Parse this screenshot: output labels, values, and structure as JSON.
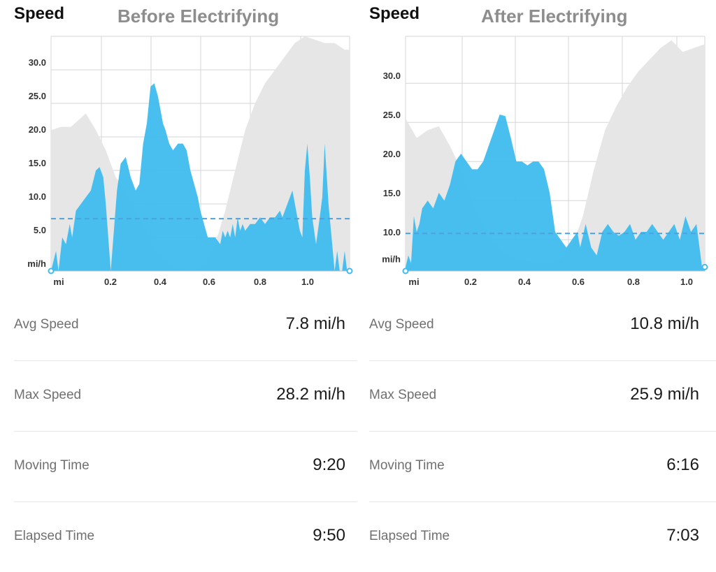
{
  "colors": {
    "speed_fill": "#3fbcef",
    "elevation_fill": "#e6e6e6",
    "avg_line": "#4aa3df",
    "grid": "#d6d6d6",
    "title_gray": "#8d8d8d"
  },
  "panels": [
    {
      "header": "Speed",
      "overlay_title": "Before Electrifying",
      "stats": [
        {
          "label": "Avg Speed",
          "value": "7.8 mi/h"
        },
        {
          "label": "Max Speed",
          "value": "28.2 mi/h"
        },
        {
          "label": "Moving Time",
          "value": "9:20"
        },
        {
          "label": "Elapsed Time",
          "value": "9:50"
        }
      ]
    },
    {
      "header": "Speed",
      "overlay_title": "After Electrifying",
      "stats": [
        {
          "label": "Avg Speed",
          "value": "10.8 mi/h"
        },
        {
          "label": "Max Speed",
          "value": "25.9 mi/h"
        },
        {
          "label": "Moving Time",
          "value": "6:16"
        },
        {
          "label": "Elapsed Time",
          "value": "7:03"
        }
      ]
    }
  ],
  "chart_data": [
    {
      "type": "area",
      "title": "Before Electrifying",
      "xlabel": "mi",
      "ylabel": "mi/h",
      "xlim": [
        0,
        1.2
      ],
      "ylim": [
        0,
        35
      ],
      "x_ticks": [
        "mi",
        "0.2",
        "0.4",
        "0.6",
        "0.8",
        "1.0"
      ],
      "y_ticks": [
        "mi/h",
        "5.0",
        "10.0",
        "15.0",
        "20.0",
        "25.0",
        "30.0"
      ],
      "grid": true,
      "avg_speed": 7.8,
      "series": [
        {
          "name": "Speed",
          "x": [
            0,
            0.02,
            0.03,
            0.045,
            0.06,
            0.075,
            0.085,
            0.1,
            0.12,
            0.14,
            0.16,
            0.18,
            0.195,
            0.21,
            0.22,
            0.24,
            0.265,
            0.28,
            0.3,
            0.32,
            0.34,
            0.355,
            0.37,
            0.385,
            0.4,
            0.415,
            0.43,
            0.45,
            0.46,
            0.475,
            0.49,
            0.51,
            0.53,
            0.545,
            0.56,
            0.575,
            0.59,
            0.6,
            0.63,
            0.66,
            0.68,
            0.69,
            0.7,
            0.71,
            0.72,
            0.73,
            0.74,
            0.75,
            0.76,
            0.77,
            0.78,
            0.8,
            0.82,
            0.84,
            0.86,
            0.88,
            0.9,
            0.92,
            0.93,
            0.95,
            0.97,
            0.99,
            1.0,
            1.01,
            1.02,
            1.03,
            1.04,
            1.05,
            1.065,
            1.08,
            1.09,
            1.1,
            1.115,
            1.13,
            1.14,
            1.15,
            1.16,
            1.17,
            1.18,
            1.19,
            1.2
          ],
          "values": [
            0,
            3,
            0,
            5,
            4,
            7,
            5,
            9,
            10,
            11,
            12,
            15,
            15.5,
            14,
            10,
            0,
            12,
            16,
            17,
            14,
            12,
            13,
            19,
            22,
            27.5,
            28,
            26,
            22,
            21,
            19,
            18,
            19,
            19,
            18,
            15,
            13,
            11,
            9,
            5,
            5,
            4,
            6,
            5,
            6,
            5,
            7,
            5,
            8,
            6,
            7,
            6,
            7,
            7,
            8,
            7,
            8,
            8,
            9,
            8,
            10,
            12,
            8,
            6,
            5,
            15,
            19,
            14,
            8,
            4,
            8,
            11,
            19,
            10,
            4,
            0,
            3,
            0,
            0,
            3,
            0,
            0
          ]
        },
        {
          "name": "Elevation",
          "x": [
            0,
            0.04,
            0.08,
            0.14,
            0.18,
            0.22,
            0.26,
            0.3,
            0.34,
            0.38,
            0.42,
            0.46,
            0.5,
            0.54,
            0.58,
            0.62,
            0.66,
            0.7,
            0.74,
            0.78,
            0.82,
            0.86,
            0.9,
            0.94,
            0.98,
            1.02,
            1.06,
            1.1,
            1.14,
            1.18,
            1.2
          ],
          "values": [
            21,
            21.5,
            21.5,
            23.5,
            21,
            18,
            14,
            12,
            9,
            6,
            3,
            1.5,
            0.5,
            0,
            0,
            1,
            4,
            9,
            15,
            21,
            25,
            28,
            30,
            32,
            34,
            35,
            34.5,
            34,
            34,
            33,
            33
          ]
        }
      ]
    },
    {
      "type": "area",
      "title": "After Electrifying",
      "xlabel": "mi",
      "ylabel": "mi/h",
      "xlim": [
        0,
        1.08
      ],
      "ylim": [
        6,
        36
      ],
      "x_ticks": [
        "mi",
        "0.2",
        "0.4",
        "0.6",
        "0.8",
        "1.0"
      ],
      "y_ticks": [
        "mi/h",
        "10.0",
        "15.0",
        "20.0",
        "25.0",
        "30.0"
      ],
      "grid": true,
      "avg_speed": 10.8,
      "series": [
        {
          "name": "Speed",
          "x": [
            0,
            0.01,
            0.02,
            0.03,
            0.04,
            0.05,
            0.06,
            0.08,
            0.1,
            0.12,
            0.14,
            0.16,
            0.18,
            0.2,
            0.22,
            0.24,
            0.26,
            0.28,
            0.3,
            0.32,
            0.34,
            0.36,
            0.38,
            0.4,
            0.42,
            0.44,
            0.46,
            0.48,
            0.5,
            0.52,
            0.54,
            0.56,
            0.58,
            0.6,
            0.62,
            0.63,
            0.65,
            0.67,
            0.69,
            0.71,
            0.73,
            0.75,
            0.77,
            0.79,
            0.81,
            0.83,
            0.85,
            0.87,
            0.89,
            0.91,
            0.93,
            0.95,
            0.97,
            0.99,
            1.01,
            1.03,
            1.05,
            1.07,
            1.08
          ],
          "values": [
            6.5,
            8,
            7,
            13,
            11,
            12,
            14,
            15,
            14,
            16,
            15,
            17,
            20,
            21,
            20,
            19,
            19,
            20,
            22,
            24,
            26,
            25.8,
            23,
            20,
            20,
            19.5,
            20,
            20,
            19,
            16,
            11,
            10,
            9,
            10,
            11,
            9,
            12,
            9,
            8,
            11,
            12,
            11,
            10.5,
            11,
            12,
            10,
            11,
            11,
            12,
            11,
            10,
            11,
            12,
            10,
            13,
            11,
            12,
            6.5,
            6.5
          ]
        },
        {
          "name": "Elevation",
          "x": [
            0,
            0.04,
            0.08,
            0.12,
            0.16,
            0.2,
            0.24,
            0.28,
            0.32,
            0.36,
            0.4,
            0.44,
            0.48,
            0.52,
            0.56,
            0.6,
            0.64,
            0.68,
            0.72,
            0.76,
            0.8,
            0.84,
            0.88,
            0.92,
            0.96,
            1.0,
            1.04,
            1.08
          ],
          "values": [
            25.5,
            23,
            24,
            24.5,
            22,
            19,
            15,
            12,
            9.5,
            8,
            7.5,
            7.2,
            7,
            7,
            7.5,
            9,
            13,
            19,
            24,
            27,
            29.5,
            31.5,
            33,
            34.5,
            35.5,
            34,
            34.5,
            35
          ]
        }
      ]
    }
  ]
}
